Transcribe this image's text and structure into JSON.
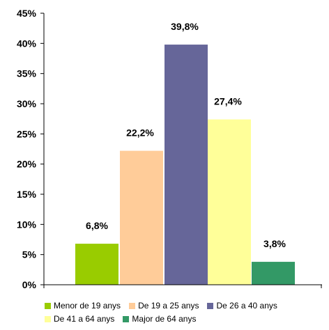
{
  "chart_data": {
    "type": "bar",
    "title": "",
    "xlabel": "",
    "ylabel": "",
    "ylim": [
      0,
      45
    ],
    "y_ticks": [
      "0%",
      "5%",
      "10%",
      "15%",
      "20%",
      "25%",
      "30%",
      "35%",
      "40%",
      "45%"
    ],
    "y_tick_values": [
      0,
      5,
      10,
      15,
      20,
      25,
      30,
      35,
      40,
      45
    ],
    "grid": false,
    "legend_position": "bottom",
    "categories": [
      "Menor de 19 anys",
      "De 19 a 25 anys",
      "De 26 a 40 anys",
      "De 41 a 64 anys",
      "Major de 64 anys"
    ],
    "values": [
      6.8,
      22.2,
      39.8,
      27.4,
      3.8
    ],
    "value_labels": [
      "6,8%",
      "22,2%",
      "39,8%",
      "27,4%",
      "3,8%"
    ],
    "colors": [
      "#99cc00",
      "#ffcc99",
      "#666699",
      "#ffff99",
      "#339966"
    ]
  }
}
